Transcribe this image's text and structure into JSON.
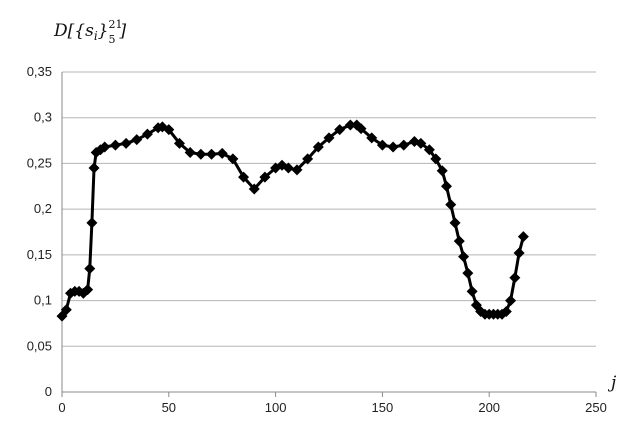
{
  "chart_data": {
    "type": "line",
    "title": "",
    "ylabel": "D[{s_i}_5^21]",
    "ylabel_parts": {
      "base": "D[{s",
      "sub_i": "i",
      "close": "}",
      "sup": "21",
      "sub": "5",
      "end": "]"
    },
    "xlabel": "j",
    "xlim": [
      0,
      250
    ],
    "ylim": [
      0,
      0.35
    ],
    "x_ticks": [
      0,
      50,
      100,
      150,
      200,
      250
    ],
    "x_tick_labels": [
      "0",
      "50",
      "100",
      "150",
      "200",
      "250"
    ],
    "y_ticks": [
      0,
      0.05,
      0.1,
      0.15,
      0.2,
      0.25,
      0.3,
      0.35
    ],
    "y_tick_labels": [
      "0",
      "0,05",
      "0,1",
      "0,15",
      "0,2",
      "0,25",
      "0,3",
      "0,35"
    ],
    "grid": "horizontal",
    "legend": "none",
    "marker": "diamond",
    "color": "#000000",
    "x": [
      0,
      2,
      4,
      6,
      8,
      10,
      12,
      13,
      14,
      15,
      16,
      18,
      20,
      25,
      30,
      35,
      40,
      45,
      47,
      50,
      55,
      60,
      65,
      70,
      75,
      80,
      85,
      90,
      95,
      100,
      103,
      106,
      110,
      115,
      120,
      125,
      130,
      135,
      138,
      140,
      145,
      150,
      155,
      160,
      165,
      168,
      172,
      175,
      178,
      180,
      182,
      184,
      186,
      188,
      190,
      192,
      194,
      196,
      198,
      200,
      202,
      204,
      206,
      208,
      210,
      212,
      214,
      216
    ],
    "y": [
      0.083,
      0.09,
      0.108,
      0.11,
      0.11,
      0.108,
      0.112,
      0.135,
      0.185,
      0.245,
      0.262,
      0.265,
      0.268,
      0.27,
      0.272,
      0.276,
      0.282,
      0.289,
      0.29,
      0.287,
      0.272,
      0.262,
      0.26,
      0.26,
      0.261,
      0.255,
      0.235,
      0.222,
      0.235,
      0.245,
      0.248,
      0.245,
      0.243,
      0.255,
      0.268,
      0.278,
      0.287,
      0.292,
      0.292,
      0.288,
      0.278,
      0.27,
      0.268,
      0.27,
      0.274,
      0.272,
      0.265,
      0.255,
      0.242,
      0.225,
      0.205,
      0.185,
      0.165,
      0.148,
      0.13,
      0.11,
      0.095,
      0.088,
      0.085,
      0.085,
      0.085,
      0.085,
      0.085,
      0.088,
      0.1,
      0.125,
      0.152,
      0.17
    ]
  }
}
